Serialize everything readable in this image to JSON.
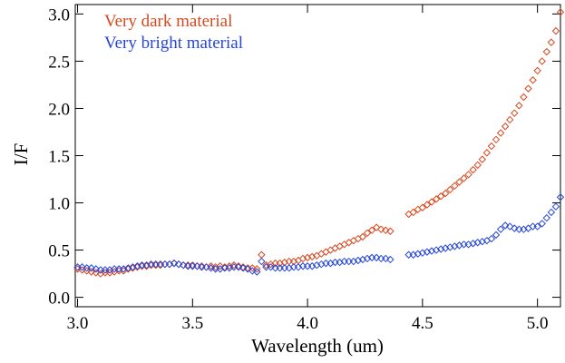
{
  "chart_data": {
    "type": "scatter",
    "xlabel": "Wavelength (um)",
    "ylabel": "I/F",
    "xlim": [
      2.99,
      5.1
    ],
    "ylim": [
      -0.1,
      3.1
    ],
    "xticks": [
      {
        "value": 3,
        "label": "3.0"
      },
      3.5,
      {
        "value": 4,
        "label": "4.0"
      },
      4.5,
      {
        "value": 5,
        "label": "5.0"
      }
    ],
    "yticks": [
      {
        "value": 0,
        "label": "0.0"
      },
      0.5,
      {
        "value": 1,
        "label": "1.0"
      },
      1.5,
      {
        "value": 2,
        "label": "2.0"
      },
      2.5,
      {
        "value": 3,
        "label": "3.0"
      }
    ],
    "legend": "upper left",
    "x": [
      3.0,
      3.02,
      3.04,
      3.06,
      3.08,
      3.1,
      3.12,
      3.14,
      3.16,
      3.18,
      3.2,
      3.22,
      3.24,
      3.26,
      3.28,
      3.3,
      3.32,
      3.34,
      3.36,
      3.38,
      3.4,
      3.42,
      3.44,
      3.46,
      3.48,
      3.5,
      3.52,
      3.54,
      3.56,
      3.58,
      3.6,
      3.62,
      3.64,
      3.66,
      3.68,
      3.7,
      3.72,
      3.74,
      3.76,
      3.78,
      3.8,
      3.82,
      3.84,
      3.86,
      3.88,
      3.9,
      3.92,
      3.94,
      3.96,
      3.98,
      4.0,
      4.02,
      4.04,
      4.06,
      4.08,
      4.1,
      4.12,
      4.14,
      4.16,
      4.18,
      4.2,
      4.22,
      4.24,
      4.26,
      4.28,
      4.3,
      4.32,
      4.34,
      4.36,
      4.38,
      4.4,
      4.42,
      4.44,
      4.46,
      4.48,
      4.5,
      4.52,
      4.54,
      4.56,
      4.58,
      4.6,
      4.62,
      4.64,
      4.66,
      4.68,
      4.7,
      4.72,
      4.74,
      4.76,
      4.78,
      4.8,
      4.82,
      4.84,
      4.86,
      4.88,
      4.9,
      4.92,
      4.94,
      4.96,
      4.98,
      5.0,
      5.02,
      5.04,
      5.06,
      5.08,
      5.1
    ],
    "series": [
      {
        "name": "Very dark material",
        "color": "#d9481f",
        "values": [
          0.3,
          0.29,
          0.28,
          0.27,
          0.26,
          0.25,
          0.26,
          0.26,
          0.27,
          0.28,
          0.28,
          0.3,
          0.31,
          0.32,
          0.33,
          0.33,
          0.34,
          0.34,
          0.34,
          0.35,
          0.35,
          0.36,
          0.35,
          0.34,
          0.34,
          0.34,
          0.33,
          0.33,
          0.32,
          0.33,
          0.32,
          0.33,
          0.32,
          0.33,
          0.34,
          0.33,
          0.32,
          0.31,
          0.31,
          0.3,
          0.45,
          0.34,
          0.35,
          0.36,
          0.36,
          0.37,
          0.38,
          0.38,
          0.39,
          0.41,
          0.42,
          0.43,
          0.44,
          0.46,
          0.48,
          0.5,
          0.52,
          0.54,
          0.56,
          0.58,
          0.6,
          0.62,
          0.64,
          0.68,
          0.71,
          0.74,
          0.72,
          0.71,
          0.7,
          null,
          null,
          null,
          0.88,
          0.9,
          0.93,
          0.95,
          0.98,
          1.01,
          1.04,
          1.07,
          1.1,
          1.14,
          1.18,
          1.22,
          1.26,
          1.3,
          1.35,
          1.4,
          1.46,
          1.53,
          1.6,
          1.67,
          1.74,
          1.81,
          1.88,
          1.95,
          2.03,
          2.12,
          2.21,
          2.3,
          2.4,
          2.5,
          2.6,
          2.7,
          2.82,
          3.02
        ]
      },
      {
        "name": "Very bright material",
        "color": "#2546d8",
        "values": [
          0.32,
          0.32,
          0.31,
          0.31,
          0.3,
          0.29,
          0.29,
          0.29,
          0.3,
          0.3,
          0.3,
          0.31,
          0.32,
          0.33,
          0.34,
          0.34,
          0.35,
          0.35,
          0.35,
          0.35,
          0.35,
          0.36,
          0.35,
          0.34,
          0.33,
          0.33,
          0.33,
          0.32,
          0.32,
          0.31,
          0.3,
          0.3,
          0.31,
          0.31,
          0.32,
          0.32,
          0.31,
          0.3,
          0.28,
          0.27,
          0.38,
          0.32,
          0.32,
          0.31,
          0.31,
          0.31,
          0.31,
          0.32,
          0.32,
          0.33,
          0.33,
          0.33,
          0.34,
          0.35,
          0.36,
          0.36,
          0.37,
          0.37,
          0.38,
          0.38,
          0.38,
          0.39,
          0.4,
          0.41,
          0.42,
          0.42,
          0.41,
          0.41,
          0.4,
          null,
          null,
          null,
          0.45,
          0.45,
          0.46,
          0.47,
          0.48,
          0.49,
          0.5,
          0.51,
          0.52,
          0.53,
          0.54,
          0.55,
          0.56,
          0.56,
          0.57,
          0.58,
          0.59,
          0.6,
          0.62,
          0.66,
          0.72,
          0.76,
          0.75,
          0.73,
          0.72,
          0.72,
          0.73,
          0.75,
          0.75,
          0.78,
          0.84,
          0.9,
          0.96,
          1.06
        ]
      }
    ]
  }
}
